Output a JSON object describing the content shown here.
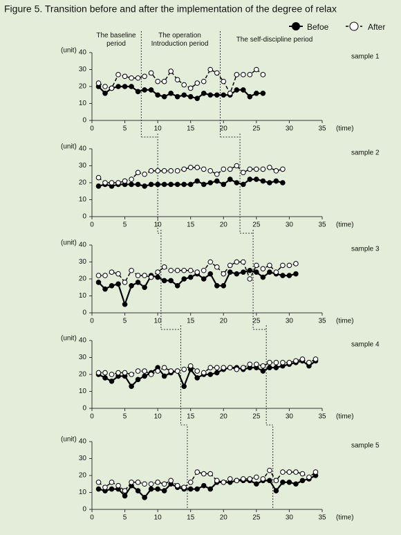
{
  "figure": {
    "title": "Figure 5.   Transition before and after the implementation of the degree of relax",
    "phases": [
      "The baseline period",
      "The operation Introduction period",
      "The self-discipline period"
    ]
  },
  "chart_data": [
    {
      "type": "line",
      "title": "sample 1",
      "y_label": "(unit)",
      "x_label": "(time)",
      "xlim": [
        0,
        35
      ],
      "xticks": [
        0,
        5,
        10,
        15,
        20,
        25,
        30,
        35
      ],
      "ylim": [
        0,
        40
      ],
      "yticks": [
        0,
        10,
        20,
        30,
        40
      ],
      "phase_boundaries": [
        7.5,
        19.5
      ],
      "x": [
        1,
        2,
        3,
        4,
        5,
        6,
        7,
        8,
        9,
        10,
        11,
        12,
        13,
        14,
        15,
        16,
        17,
        18,
        19,
        20,
        21,
        22,
        23,
        24,
        25,
        26
      ],
      "series": [
        {
          "name": "Befoe",
          "color": "#000000",
          "values": [
            20,
            16,
            19,
            20,
            20,
            20,
            17,
            18,
            18,
            15,
            14,
            16,
            14,
            15,
            14,
            13,
            16,
            15,
            15,
            15,
            15,
            18,
            18,
            14,
            16,
            16
          ]
        },
        {
          "name": "After",
          "color": "#000000",
          "values": [
            22,
            20,
            19,
            27,
            26,
            25,
            25,
            26,
            28,
            23,
            23,
            29,
            24,
            21,
            19,
            22,
            23,
            30,
            28,
            23,
            16,
            27,
            27,
            27,
            30,
            27
          ]
        }
      ]
    },
    {
      "type": "line",
      "title": "sample 2",
      "y_label": "(unit)",
      "x_label": "(time)",
      "xlim": [
        0,
        35
      ],
      "xticks": [
        0,
        5,
        10,
        15,
        20,
        25,
        30,
        35
      ],
      "ylim": [
        0,
        40
      ],
      "yticks": [
        0,
        10,
        20,
        30,
        40
      ],
      "phase_boundaries": [
        10,
        22.5
      ],
      "x": [
        1,
        2,
        3,
        4,
        5,
        6,
        7,
        8,
        9,
        10,
        11,
        12,
        13,
        14,
        15,
        16,
        17,
        18,
        19,
        20,
        21,
        22,
        23,
        24,
        25,
        26,
        27,
        28,
        29
      ],
      "series": [
        {
          "name": "Befoe",
          "color": "#000000",
          "values": [
            18,
            19,
            18,
            19,
            19,
            19,
            19,
            18,
            19,
            19,
            19,
            19,
            19,
            19,
            19,
            21,
            19,
            20,
            21,
            19,
            22,
            20,
            19,
            22,
            22,
            21,
            20,
            21,
            20
          ]
        },
        {
          "name": "After",
          "color": "#000000",
          "values": [
            23,
            20,
            20,
            20,
            21,
            22,
            26,
            25,
            27,
            27,
            27,
            27,
            27,
            28,
            29,
            29,
            28,
            27,
            25,
            28,
            28,
            30,
            26,
            28,
            28,
            28,
            29,
            27,
            28
          ]
        }
      ]
    },
    {
      "type": "line",
      "title": "sample 3",
      "y_label": "(unit)",
      "x_label": "(time)",
      "xlim": [
        0,
        35
      ],
      "xticks": [
        0,
        5,
        10,
        15,
        20,
        25,
        30,
        35
      ],
      "ylim": [
        0,
        40
      ],
      "yticks": [
        0,
        10,
        20,
        30,
        40
      ],
      "phase_boundaries": [
        10.5,
        24.5
      ],
      "x": [
        1,
        2,
        3,
        4,
        5,
        6,
        7,
        8,
        9,
        10,
        11,
        12,
        13,
        14,
        15,
        16,
        17,
        18,
        19,
        20,
        21,
        22,
        23,
        24,
        25,
        26,
        27,
        28,
        29,
        30,
        31
      ],
      "series": [
        {
          "name": "Befoe",
          "color": "#000000",
          "values": [
            18,
            14,
            16,
            17,
            5,
            16,
            18,
            15,
            22,
            21,
            19,
            19,
            16,
            20,
            21,
            23,
            20,
            23,
            16,
            16,
            24,
            23,
            24,
            25,
            24,
            21,
            24,
            23,
            22,
            22,
            23
          ]
        },
        {
          "name": "After",
          "color": "#000000",
          "values": [
            22,
            22,
            24,
            23,
            18,
            25,
            22,
            22,
            21,
            24,
            27,
            25,
            25,
            25,
            25,
            24,
            25,
            30,
            27,
            23,
            28,
            30,
            30,
            20,
            28,
            26,
            28,
            24,
            28,
            28,
            29
          ]
        }
      ]
    },
    {
      "type": "line",
      "title": "sample 4",
      "y_label": "(unit)",
      "x_label": "(time)",
      "xlim": [
        0,
        35
      ],
      "xticks": [
        0,
        5,
        10,
        15,
        20,
        25,
        30,
        35
      ],
      "ylim": [
        0,
        40
      ],
      "yticks": [
        0,
        10,
        20,
        30,
        40
      ],
      "phase_boundaries": [
        13.5,
        26.5
      ],
      "x": [
        1,
        2,
        3,
        4,
        5,
        6,
        7,
        8,
        9,
        10,
        11,
        12,
        13,
        14,
        15,
        16,
        17,
        18,
        19,
        20,
        21,
        22,
        23,
        24,
        25,
        26,
        27,
        28,
        29,
        30,
        31,
        32,
        33,
        34
      ],
      "series": [
        {
          "name": "Befoe",
          "color": "#000000",
          "values": [
            20,
            18,
            16,
            19,
            19,
            13,
            17,
            19,
            21,
            24,
            19,
            21,
            22,
            13,
            23,
            18,
            20,
            20,
            21,
            23,
            24,
            24,
            23,
            24,
            24,
            22,
            24,
            24,
            25,
            26,
            27,
            28,
            25,
            28
          ]
        },
        {
          "name": "After",
          "color": "#000000",
          "values": [
            21,
            21,
            20,
            21,
            21,
            20,
            22,
            22,
            20,
            22,
            24,
            22,
            22,
            23,
            25,
            22,
            21,
            24,
            24,
            24,
            24,
            23,
            24,
            26,
            26,
            25,
            27,
            27,
            27,
            27,
            28,
            29,
            27,
            29
          ]
        }
      ]
    },
    {
      "type": "line",
      "title": "sample 5",
      "y_label": "(unit)",
      "x_label": "(time)",
      "xlim": [
        0,
        35
      ],
      "xticks": [
        0,
        5,
        10,
        15,
        20,
        25,
        30,
        35
      ],
      "ylim": [
        0,
        40
      ],
      "yticks": [
        0,
        10,
        20,
        30,
        40
      ],
      "phase_boundaries": [
        14.5,
        27.5
      ],
      "x": [
        1,
        2,
        3,
        4,
        5,
        6,
        7,
        8,
        9,
        10,
        11,
        12,
        13,
        14,
        15,
        16,
        17,
        18,
        19,
        20,
        21,
        22,
        23,
        24,
        25,
        26,
        27,
        28,
        29,
        30,
        31,
        32,
        33,
        34
      ],
      "series": [
        {
          "name": "Befoe",
          "color": "#000000",
          "values": [
            12,
            11,
            12,
            12,
            8,
            14,
            11,
            7,
            12,
            12,
            11,
            15,
            13,
            12,
            12,
            12,
            14,
            12,
            16,
            16,
            16,
            17,
            17,
            17,
            15,
            17,
            17,
            11,
            16,
            16,
            15,
            17,
            18,
            20
          ]
        },
        {
          "name": "After",
          "color": "#000000",
          "values": [
            16,
            13,
            16,
            14,
            11,
            16,
            16,
            15,
            15,
            16,
            15,
            17,
            14,
            13,
            16,
            22,
            21,
            21,
            17,
            16,
            18,
            17,
            18,
            18,
            19,
            18,
            23,
            17,
            22,
            22,
            22,
            21,
            19,
            22
          ]
        }
      ]
    }
  ]
}
